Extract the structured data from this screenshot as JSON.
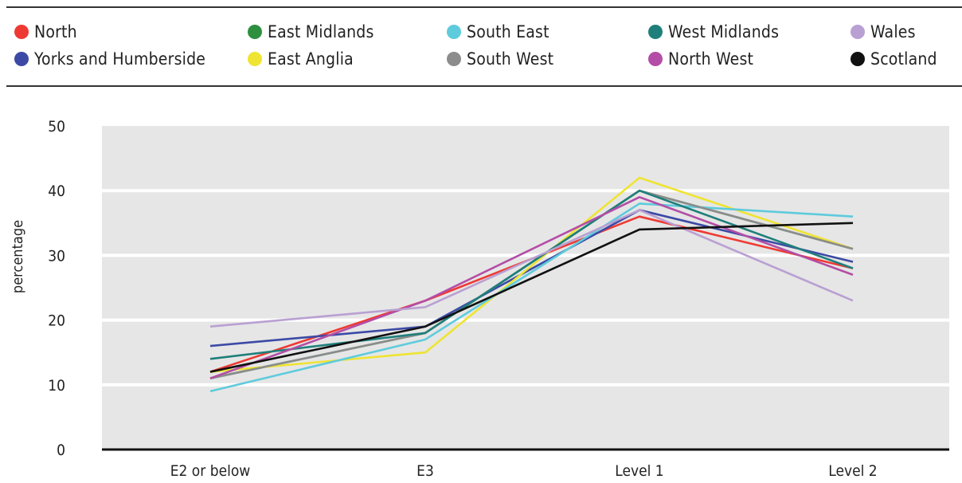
{
  "chart_data": {
    "type": "line",
    "title": "",
    "xlabel": "",
    "ylabel": "percentage",
    "ylim": [
      0,
      50
    ],
    "yticks": [
      0,
      10,
      20,
      30,
      40,
      50
    ],
    "grid": true,
    "legend_position": "top",
    "categories": [
      "E2 or below",
      "E3",
      "Level 1",
      "Level 2"
    ],
    "series": [
      {
        "name": "North",
        "color": "#ee3a33",
        "values": [
          12,
          23,
          36,
          28
        ]
      },
      {
        "name": "Yorks and Humberside",
        "color": "#3c4aa6",
        "values": [
          16,
          19,
          37,
          29
        ]
      },
      {
        "name": "East Midlands",
        "color": "#2e8f3f",
        "values": [
          11,
          18,
          40,
          31
        ]
      },
      {
        "name": "East Anglia",
        "color": "#efe432",
        "values": [
          12,
          15,
          42,
          31
        ]
      },
      {
        "name": "South East",
        "color": "#5ecbdc",
        "values": [
          9,
          17,
          38,
          36
        ]
      },
      {
        "name": "South West",
        "color": "#8c8c8c",
        "values": [
          11,
          18,
          40,
          31
        ]
      },
      {
        "name": "West Midlands",
        "color": "#1f7f7b",
        "values": [
          14,
          18,
          40,
          28
        ]
      },
      {
        "name": "North West",
        "color": "#b34da6",
        "values": [
          11,
          23,
          39,
          27
        ]
      },
      {
        "name": "Wales",
        "color": "#b9a0d2",
        "values": [
          19,
          22,
          37,
          23
        ]
      },
      {
        "name": "Scotland",
        "color": "#111111",
        "values": [
          12,
          19,
          34,
          35
        ]
      }
    ]
  }
}
